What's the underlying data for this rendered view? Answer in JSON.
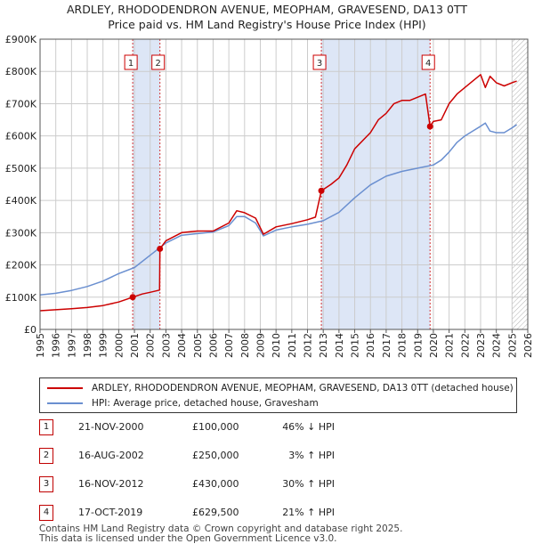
{
  "title": "ARDLEY, RHODODENDRON AVENUE, MEOPHAM, GRAVESEND, DA13 0TT",
  "subtitle": "Price paid vs. HM Land Registry's House Price Index (HPI)",
  "legend": {
    "property": "ARDLEY, RHODODENDRON AVENUE, MEOPHAM, GRAVESEND, DA13 0TT (detached house)",
    "hpi": "HPI: Average price, detached house, Gravesham"
  },
  "sales": [
    {
      "num": "1",
      "date": "21-NOV-2000",
      "price": "£100,000",
      "hpi": "46% ↓ HPI"
    },
    {
      "num": "2",
      "date": "16-AUG-2002",
      "price": "£250,000",
      "hpi": "3% ↑ HPI"
    },
    {
      "num": "3",
      "date": "16-NOV-2012",
      "price": "£430,000",
      "hpi": "30% ↑ HPI"
    },
    {
      "num": "4",
      "date": "17-OCT-2019",
      "price": "£629,500",
      "hpi": "21% ↑ HPI"
    }
  ],
  "footer": {
    "line1": "Contains HM Land Registry data © Crown copyright and database right 2025.",
    "line2": "This data is licensed under the Open Government Licence v3.0."
  },
  "colors": {
    "property": "#cc0000",
    "hpi": "#6a8fd0",
    "band": "#dde6f6",
    "grid": "#cccccc"
  },
  "chart_data": {
    "type": "line",
    "xlim": [
      1995,
      2026
    ],
    "ylim": [
      0,
      900000
    ],
    "x_ticks": [
      "1995",
      "1996",
      "1997",
      "1998",
      "1999",
      "2000",
      "2001",
      "2002",
      "2003",
      "2004",
      "2005",
      "2006",
      "2007",
      "2008",
      "2009",
      "2010",
      "2011",
      "2012",
      "2013",
      "2014",
      "2015",
      "2016",
      "2017",
      "2018",
      "2019",
      "2020",
      "2021",
      "2022",
      "2023",
      "2024",
      "2025",
      "2026"
    ],
    "y_ticks": [
      {
        "v": 0,
        "label": "£0"
      },
      {
        "v": 100000,
        "label": "£100K"
      },
      {
        "v": 200000,
        "label": "£200K"
      },
      {
        "v": 300000,
        "label": "£300K"
      },
      {
        "v": 400000,
        "label": "£400K"
      },
      {
        "v": 500000,
        "label": "£500K"
      },
      {
        "v": 600000,
        "label": "£600K"
      },
      {
        "v": 700000,
        "label": "£700K"
      },
      {
        "v": 800000,
        "label": "£800K"
      },
      {
        "v": 900000,
        "label": "£900K"
      }
    ],
    "grid": true,
    "shaded_periods": [
      [
        2000.89,
        2002.62
      ],
      [
        2012.88,
        2019.79
      ]
    ],
    "forecast_hatch_from": 2025.0,
    "series": [
      {
        "name": "ARDLEY, RHODODENDRON AVENUE, MEOPHAM, GRAVESEND, DA13 0TT (detached house)",
        "x": [
          1995.0,
          1996.0,
          1997.0,
          1998.0,
          1999.0,
          2000.0,
          2000.89,
          2001.5,
          2002.0,
          2002.6,
          2002.62,
          2003.0,
          2004.0,
          2005.0,
          2006.0,
          2007.0,
          2007.5,
          2008.0,
          2008.7,
          2009.2,
          2010.0,
          2011.0,
          2012.0,
          2012.5,
          2012.88,
          2013.5,
          2014.0,
          2014.5,
          2015.0,
          2016.0,
          2016.5,
          2017.0,
          2017.5,
          2018.0,
          2018.5,
          2019.0,
          2019.5,
          2019.79,
          2020.0,
          2020.5,
          2021.0,
          2021.5,
          2022.0,
          2022.5,
          2023.0,
          2023.3,
          2023.6,
          2024.0,
          2024.5,
          2025.0,
          2025.3
        ],
        "values": [
          58000,
          61000,
          64000,
          68000,
          74000,
          85000,
          100000,
          110000,
          115000,
          122000,
          250000,
          275000,
          300000,
          305000,
          305000,
          330000,
          368000,
          362000,
          345000,
          295000,
          318000,
          328000,
          340000,
          348000,
          430000,
          450000,
          470000,
          510000,
          560000,
          610000,
          650000,
          670000,
          700000,
          710000,
          710000,
          720000,
          730000,
          629500,
          645000,
          650000,
          700000,
          730000,
          750000,
          770000,
          790000,
          750000,
          785000,
          765000,
          755000,
          765000,
          770000
        ]
      },
      {
        "name": "HPI: Average price, detached house, Gravesham",
        "x": [
          1995.0,
          1996.0,
          1997.0,
          1998.0,
          1999.0,
          2000.0,
          2001.0,
          2002.0,
          2003.0,
          2004.0,
          2005.0,
          2006.0,
          2007.0,
          2007.5,
          2008.0,
          2008.7,
          2009.2,
          2010.0,
          2011.0,
          2012.0,
          2013.0,
          2014.0,
          2015.0,
          2016.0,
          2017.0,
          2018.0,
          2019.0,
          2020.0,
          2020.5,
          2021.0,
          2021.5,
          2022.0,
          2022.5,
          2023.0,
          2023.3,
          2023.6,
          2024.0,
          2024.5,
          2025.0,
          2025.3
        ],
        "values": [
          107000,
          112000,
          121000,
          133000,
          150000,
          173000,
          192000,
          230000,
          268000,
          292000,
          297000,
          302000,
          322000,
          350000,
          350000,
          330000,
          290000,
          308000,
          318000,
          326000,
          337000,
          363000,
          408000,
          448000,
          475000,
          490000,
          500000,
          510000,
          525000,
          550000,
          580000,
          600000,
          615000,
          630000,
          640000,
          615000,
          610000,
          610000,
          625000,
          635000
        ]
      }
    ],
    "sale_points": [
      {
        "label": "1",
        "x": 2000.89,
        "y": 100000
      },
      {
        "label": "2",
        "x": 2002.62,
        "y": 250000
      },
      {
        "label": "3",
        "x": 2012.88,
        "y": 430000
      },
      {
        "label": "4",
        "x": 2019.79,
        "y": 629500
      }
    ]
  }
}
